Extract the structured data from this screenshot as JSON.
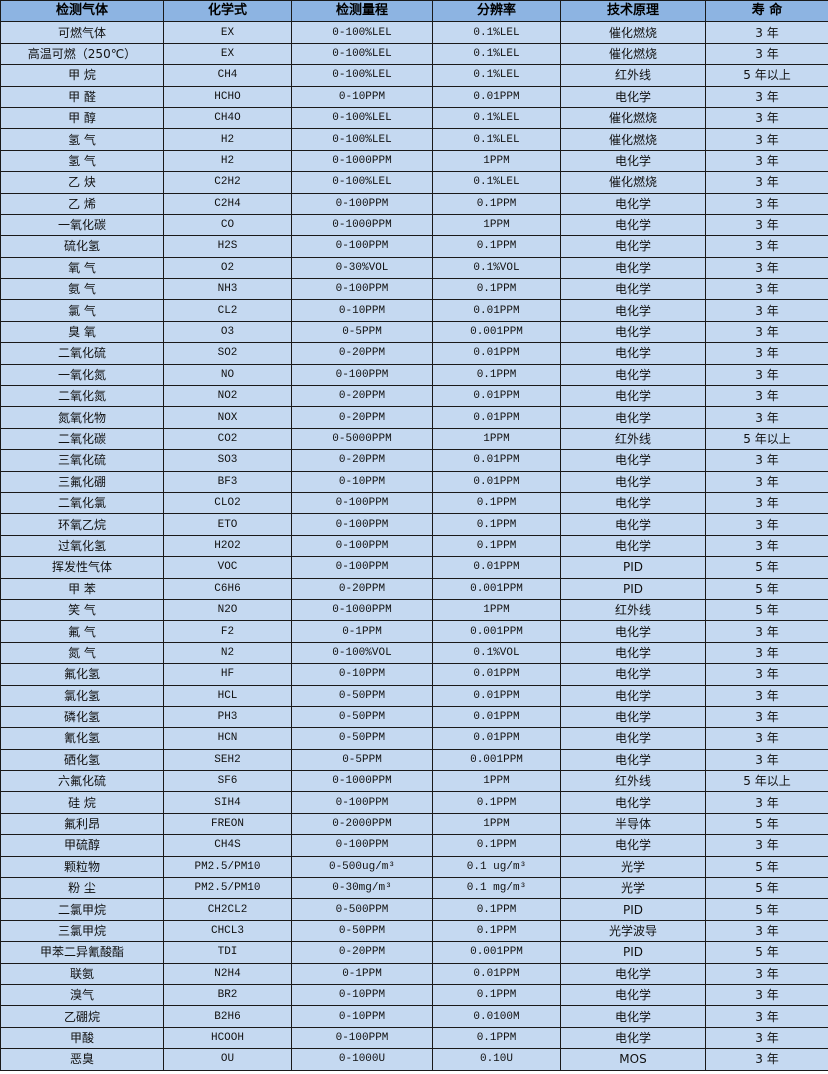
{
  "colors": {
    "header_bg": "#8db4e2",
    "row_bg": "#c5d9f1",
    "border": "#1a1a1a"
  },
  "headers": [
    "检测气体",
    "化学式",
    "检测量程",
    "分辨率",
    "技术原理",
    "寿 命"
  ],
  "rows": [
    [
      "可燃气体",
      "EX",
      "0-100%LEL",
      "0.1%LEL",
      "催化燃烧",
      "3 年"
    ],
    [
      "高温可燃（250℃）",
      "EX",
      "0-100%LEL",
      "0.1%LEL",
      "催化燃烧",
      "3 年"
    ],
    [
      "甲 烷",
      "CH4",
      "0-100%LEL",
      "0.1%LEL",
      "红外线",
      "5 年以上"
    ],
    [
      "甲 醛",
      "HCHO",
      "0-10PPM",
      "0.01PPM",
      "电化学",
      "3 年"
    ],
    [
      "甲 醇",
      "CH4O",
      "0-100%LEL",
      "0.1%LEL",
      "催化燃烧",
      "3 年"
    ],
    [
      "氢 气",
      "H2",
      "0-100%LEL",
      "0.1%LEL",
      "催化燃烧",
      "3 年"
    ],
    [
      "氢 气",
      "H2",
      "0-1000PPM",
      "1PPM",
      "电化学",
      "3 年"
    ],
    [
      "乙 炔",
      "C2H2",
      "0-100%LEL",
      "0.1%LEL",
      "催化燃烧",
      "3 年"
    ],
    [
      "乙 烯",
      "C2H4",
      "0-100PPM",
      "0.1PPM",
      "电化学",
      "3 年"
    ],
    [
      "一氧化碳",
      "CO",
      "0-1000PPM",
      "1PPM",
      "电化学",
      "3 年"
    ],
    [
      "硫化氢",
      "H2S",
      "0-100PPM",
      "0.1PPM",
      "电化学",
      "3 年"
    ],
    [
      "氧 气",
      "O2",
      "0-30%VOL",
      "0.1%VOL",
      "电化学",
      "3 年"
    ],
    [
      "氨 气",
      "NH3",
      "0-100PPM",
      "0.1PPM",
      "电化学",
      "3 年"
    ],
    [
      "氯 气",
      "CL2",
      "0-10PPM",
      "0.01PPM",
      "电化学",
      "3 年"
    ],
    [
      "臭 氧",
      "O3",
      "0-5PPM",
      "0.001PPM",
      "电化学",
      "3 年"
    ],
    [
      "二氧化硫",
      "SO2",
      "0-20PPM",
      "0.01PPM",
      "电化学",
      "3 年"
    ],
    [
      "一氧化氮",
      "NO",
      "0-100PPM",
      "0.1PPM",
      "电化学",
      "3 年"
    ],
    [
      "二氧化氮",
      "NO2",
      "0-20PPM",
      "0.01PPM",
      "电化学",
      "3 年"
    ],
    [
      "氮氧化物",
      "NOX",
      "0-20PPM",
      "0.01PPM",
      "电化学",
      "3 年"
    ],
    [
      "二氧化碳",
      "CO2",
      "0-5000PPM",
      "1PPM",
      "红外线",
      "5 年以上"
    ],
    [
      "三氧化硫",
      "SO3",
      "0-20PPM",
      "0.01PPM",
      "电化学",
      "3 年"
    ],
    [
      "三氟化硼",
      "BF3",
      "0-10PPM",
      "0.01PPM",
      "电化学",
      "3 年"
    ],
    [
      "二氧化氯",
      "CLO2",
      "0-100PPM",
      "0.1PPM",
      "电化学",
      "3 年"
    ],
    [
      "环氧乙烷",
      "ETO",
      "0-100PPM",
      "0.1PPM",
      "电化学",
      "3 年"
    ],
    [
      "过氧化氢",
      "H2O2",
      "0-100PPM",
      "0.1PPM",
      "电化学",
      "3 年"
    ],
    [
      "挥发性气体",
      "VOC",
      "0-100PPM",
      "0.01PPM",
      "PID",
      "5 年"
    ],
    [
      "甲 苯",
      "C6H6",
      "0-20PPM",
      "0.001PPM",
      "PID",
      "5 年"
    ],
    [
      "笑 气",
      "N2O",
      "0-1000PPM",
      "1PPM",
      "红外线",
      "5 年"
    ],
    [
      "氟 气",
      "F2",
      "0-1PPM",
      "0.001PPM",
      "电化学",
      "3 年"
    ],
    [
      "氮 气",
      "N2",
      "0-100%VOL",
      "0.1%VOL",
      "电化学",
      "3 年"
    ],
    [
      "氟化氢",
      "HF",
      "0-10PPM",
      "0.01PPM",
      "电化学",
      "3 年"
    ],
    [
      "氯化氢",
      "HCL",
      "0-50PPM",
      "0.01PPM",
      "电化学",
      "3 年"
    ],
    [
      "磷化氢",
      "PH3",
      "0-50PPM",
      "0.01PPM",
      "电化学",
      "3 年"
    ],
    [
      "氰化氢",
      "HCN",
      "0-50PPM",
      "0.01PPM",
      "电化学",
      "3 年"
    ],
    [
      "硒化氢",
      "SEH2",
      "0-5PPM",
      "0.001PPM",
      "电化学",
      "3 年"
    ],
    [
      "六氟化硫",
      "SF6",
      "0-1000PPM",
      "1PPM",
      "红外线",
      "5 年以上"
    ],
    [
      "硅 烷",
      "SIH4",
      "0-100PPM",
      "0.1PPM",
      "电化学",
      "3 年"
    ],
    [
      "氟利昂",
      "FREON",
      "0-2000PPM",
      "1PPM",
      "半导体",
      "5 年"
    ],
    [
      "甲硫醇",
      "CH4S",
      "0-100PPM",
      "0.1PPM",
      "电化学",
      "3 年"
    ],
    [
      "颗粒物",
      "PM2.5/PM10",
      "0-500ug/m³",
      "0.1 ug/m³",
      "光学",
      "5 年"
    ],
    [
      "粉 尘",
      "PM2.5/PM10",
      "0-30mg/m³",
      "0.1 mg/m³",
      "光学",
      "5 年"
    ],
    [
      "二氯甲烷",
      "CH2CL2",
      "0-500PPM",
      "0.1PPM",
      "PID",
      "5 年"
    ],
    [
      "三氯甲烷",
      "CHCL3",
      "0-50PPM",
      "0.1PPM",
      "光学波导",
      "3 年"
    ],
    [
      "甲苯二异氰酸酯",
      "TDI",
      "0-20PPM",
      "0.001PPM",
      "PID",
      "5 年"
    ],
    [
      "联氨",
      "N2H4",
      "0-1PPM",
      "0.01PPM",
      "电化学",
      "3 年"
    ],
    [
      "溴气",
      "BR2",
      "0-10PPM",
      "0.1PPM",
      "电化学",
      "3 年"
    ],
    [
      "乙硼烷",
      "B2H6",
      "0-10PPM",
      "0.0100M",
      "电化学",
      "3 年"
    ],
    [
      "甲酸",
      "HCOOH",
      "0-100PPM",
      "0.1PPM",
      "电化学",
      "3 年"
    ],
    [
      "恶臭",
      "OU",
      "0-1000U",
      "0.10U",
      "MOS",
      "3 年"
    ]
  ]
}
